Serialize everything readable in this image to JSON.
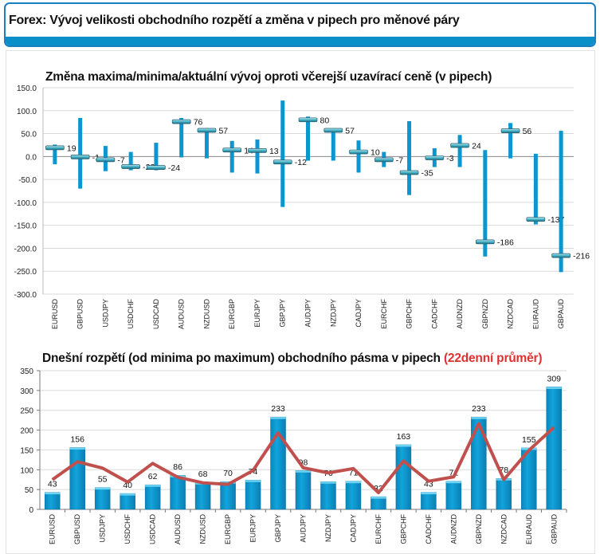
{
  "header": {
    "title": "Forex: Vývoj velikosti obchodního rozpětí a změna v pipech pro měnové páry"
  },
  "colors": {
    "bar": "#0b96cf",
    "marker": "#46b4c8",
    "avg_line": "#c0504d",
    "title_accent": "#e03030",
    "header_border": "#1a7fc0"
  },
  "chart_data": [
    {
      "type": "bar",
      "subtype": "high-low-current",
      "title": "Změna maxima/minima/aktuální vývoj oproti včerejší uzavírací ceně (v pipech)",
      "categories": [
        "EURUSD",
        "GBPUSD",
        "USDJPY",
        "USDCHF",
        "USDCAD",
        "AUDUSD",
        "NZDUSD",
        "EURGBP",
        "EURJPY",
        "GBPJPY",
        "AUDJPY",
        "NZDJPY",
        "CADJPY",
        "EURCHF",
        "GBPCHF",
        "CADCHF",
        "AUDNZD",
        "GBPNZD",
        "NZDCAD",
        "EURAUD",
        "GBPAUD"
      ],
      "high": [
        26,
        84,
        23,
        10,
        30,
        84,
        62,
        34,
        37,
        122,
        87,
        60,
        35,
        10,
        77,
        18,
        47,
        14,
        73,
        6,
        56
      ],
      "low": [
        -17,
        -70,
        -32,
        -30,
        -30,
        -2,
        -4,
        -35,
        -37,
        -110,
        -9,
        -9,
        -35,
        -23,
        -84,
        -23,
        -23,
        -218,
        -4,
        -148,
        -252
      ],
      "current": [
        19,
        -1,
        -7,
        -22,
        -24,
        76,
        57,
        14,
        13,
        -12,
        80,
        57,
        10,
        -7,
        -35,
        -3,
        24,
        -186,
        56,
        -137,
        -216
      ],
      "current_labels": [
        "19",
        "-1",
        "-7",
        "-22",
        "-24",
        "76",
        "57",
        "14",
        "13",
        "-12",
        "80",
        "57",
        "10",
        "-7",
        "-35",
        "-3",
        "24",
        "-186",
        "56",
        "-137",
        "-216"
      ],
      "ylim": [
        -300,
        150
      ],
      "yticks": [
        "150.0",
        "100.0",
        "50.0",
        "0.0",
        "-50.0",
        "-100.0",
        "-150.0",
        "-200.0",
        "-250.0",
        "-300.0"
      ],
      "ytick_values": [
        150,
        100,
        50,
        0,
        -50,
        -100,
        -150,
        -200,
        -250,
        -300
      ],
      "grid": true
    },
    {
      "type": "bar",
      "title": "Dnešní rozpětí (od minima po maximum) obchodního pásma v pipech",
      "title_accent": "(22denní průměr)",
      "categories": [
        "EURUSD",
        "GBPUSD",
        "USDJPY",
        "USDCHF",
        "USDCAD",
        "AUDUSD",
        "NZDUSD",
        "EURGBP",
        "EURJPY",
        "GBPJPY",
        "AUDJPY",
        "NZDJPY",
        "CADJPY",
        "EURCHF",
        "GBPCHF",
        "CADCHF",
        "AUDNZD",
        "GBPNZD",
        "NZDCAD",
        "EURAUD",
        "GBPAUD"
      ],
      "values": [
        43,
        156,
        55,
        40,
        62,
        86,
        68,
        70,
        74,
        233,
        98,
        70,
        71,
        32,
        163,
        43,
        71,
        233,
        78,
        155,
        309
      ],
      "value_labels": [
        "43",
        "156",
        "55",
        "40",
        "62",
        "86",
        "68",
        "70",
        "74",
        "233",
        "98",
        "70",
        "71",
        "32",
        "163",
        "43",
        "71",
        "233",
        "78",
        "155",
        "309"
      ],
      "average_22d": [
        75,
        120,
        104,
        69,
        116,
        81,
        67,
        63,
        98,
        193,
        105,
        92,
        103,
        42,
        122,
        71,
        82,
        216,
        75,
        149,
        207
      ],
      "ylim": [
        0,
        350
      ],
      "yticks": [
        "350",
        "300",
        "250",
        "200",
        "150",
        "100",
        "50",
        "0"
      ],
      "ytick_values": [
        350,
        300,
        250,
        200,
        150,
        100,
        50,
        0
      ],
      "grid": true
    }
  ]
}
